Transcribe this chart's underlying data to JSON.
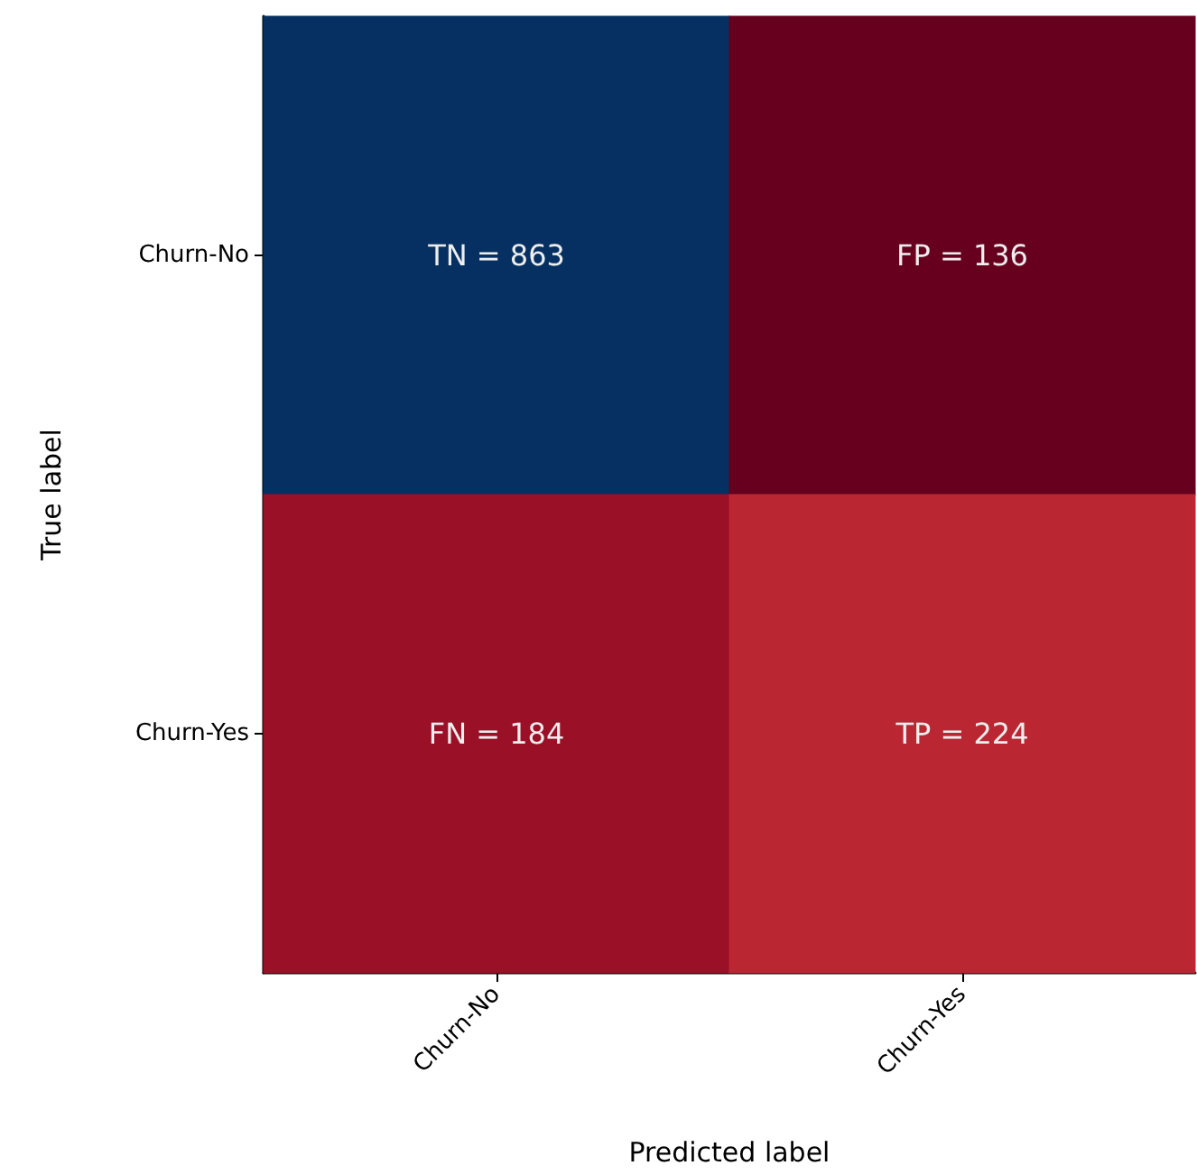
{
  "chart_data": {
    "type": "heatmap",
    "xlabel": "Predicted label",
    "ylabel": "True label",
    "categories": [
      "Churn-No",
      "Churn-Yes"
    ],
    "y_categories": [
      "Churn-No",
      "Churn-Yes"
    ],
    "cells": [
      [
        863,
        136
      ],
      [
        184,
        224
      ]
    ],
    "cell_labels": [
      [
        "TN = 863",
        "FP = 136"
      ],
      [
        "FN = 184",
        "TP = 224"
      ]
    ]
  }
}
